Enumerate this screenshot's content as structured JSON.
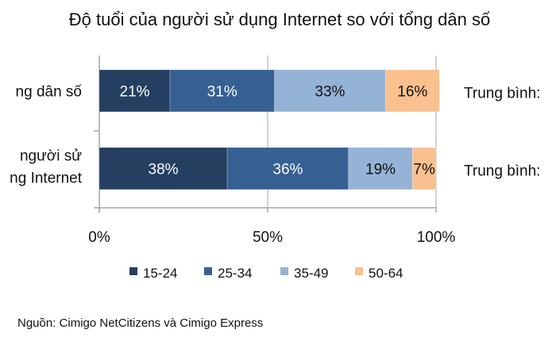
{
  "chart_data": {
    "type": "bar",
    "orientation": "horizontal",
    "stacked": true,
    "title": "Độ tuổi của người sử dụng Internet so với tổng dân số",
    "categories": [
      "ng dân số",
      "người sử\nng Internet"
    ],
    "series": [
      {
        "name": "15-24",
        "values": [
          21,
          38
        ],
        "color": "#243f60"
      },
      {
        "name": "25-34",
        "values": [
          31,
          36
        ],
        "color": "#366092"
      },
      {
        "name": "35-49",
        "values": [
          33,
          19
        ],
        "color": "#95b3d7"
      },
      {
        "name": "50-64",
        "values": [
          16,
          7
        ],
        "color": "#fac090"
      }
    ],
    "data_labels": [
      [
        "21%",
        "31%",
        "33%",
        "16%"
      ],
      [
        "38%",
        "36%",
        "19%",
        "7%"
      ]
    ],
    "right_labels": [
      "Trung bình:",
      "Trung bình:"
    ],
    "xlim": [
      0,
      100
    ],
    "x_ticks": [
      "0%",
      "50%",
      "100%"
    ],
    "grid": true,
    "legend_position": "bottom",
    "source": "Nguồn: Cimigo NetCitizens và Cimigo Express"
  }
}
